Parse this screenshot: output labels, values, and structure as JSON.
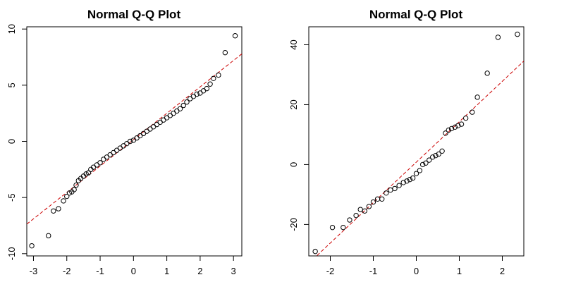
{
  "chart_data": [
    {
      "type": "scatter",
      "title": "Normal Q-Q Plot",
      "xlabel": "",
      "ylabel": "",
      "xlim": [
        -3.2,
        3.25
      ],
      "ylim": [
        -10.2,
        10.2
      ],
      "xticks": [
        -3,
        -2,
        -1,
        0,
        1,
        2,
        3
      ],
      "yticks": [
        -10,
        -5,
        0,
        5,
        10
      ],
      "grid": false,
      "point_color": "#000000",
      "reference_line": {
        "slope": 2.35,
        "intercept": 0.15,
        "color": "#cc0000",
        "style": "dashed"
      },
      "series": [
        {
          "x": [
            -3.05,
            -2.55,
            -2.4,
            -2.25,
            -2.1,
            -2.0,
            -1.92,
            -1.85,
            -1.78,
            -1.72,
            -1.65,
            -1.58,
            -1.5,
            -1.42,
            -1.35,
            -1.28,
            -1.2,
            -1.1,
            -1.0,
            -0.9,
            -0.8,
            -0.7,
            -0.6,
            -0.5,
            -0.4,
            -0.3,
            -0.2,
            -0.1,
            0.0,
            0.1,
            0.2,
            0.3,
            0.4,
            0.5,
            0.6,
            0.7,
            0.8,
            0.9,
            1.0,
            1.1,
            1.2,
            1.3,
            1.4,
            1.5,
            1.6,
            1.7,
            1.8,
            1.9,
            2.0,
            2.1,
            2.2,
            2.3,
            2.4,
            2.55,
            2.75,
            3.05
          ],
          "y": [
            -9.3,
            -8.4,
            -6.2,
            -6.0,
            -5.3,
            -4.9,
            -4.6,
            -4.5,
            -4.3,
            -3.9,
            -3.5,
            -3.3,
            -3.1,
            -2.9,
            -2.8,
            -2.5,
            -2.3,
            -2.1,
            -1.9,
            -1.6,
            -1.4,
            -1.2,
            -1.0,
            -0.8,
            -0.6,
            -0.4,
            -0.2,
            0.0,
            0.1,
            0.3,
            0.5,
            0.7,
            0.9,
            1.1,
            1.3,
            1.5,
            1.7,
            1.9,
            2.1,
            2.3,
            2.5,
            2.7,
            2.9,
            3.2,
            3.5,
            3.8,
            4.0,
            4.2,
            4.3,
            4.5,
            4.7,
            5.1,
            5.6,
            5.9,
            7.9,
            9.4
          ]
        }
      ]
    },
    {
      "type": "scatter",
      "title": "Normal Q-Q Plot",
      "xlabel": "",
      "ylabel": "",
      "xlim": [
        -2.5,
        2.5
      ],
      "ylim": [
        -30.5,
        46
      ],
      "xticks": [
        -2,
        -1,
        0,
        1,
        2
      ],
      "yticks": [
        -20,
        0,
        20,
        40
      ],
      "grid": false,
      "point_color": "#000000",
      "reference_line": {
        "slope": 13.5,
        "intercept": 0.8,
        "color": "#cc0000",
        "style": "dashed"
      },
      "series": [
        {
          "x": [
            -2.35,
            -1.95,
            -1.7,
            -1.55,
            -1.4,
            -1.3,
            -1.2,
            -1.1,
            -1.0,
            -0.9,
            -0.8,
            -0.7,
            -0.6,
            -0.5,
            -0.4,
            -0.3,
            -0.22,
            -0.15,
            -0.08,
            0.0,
            0.08,
            0.15,
            0.22,
            0.3,
            0.38,
            0.45,
            0.52,
            0.6,
            0.68,
            0.75,
            0.82,
            0.9,
            0.97,
            1.05,
            1.15,
            1.3,
            1.42,
            1.65,
            1.9,
            2.35
          ],
          "y": [
            -29.0,
            -21.0,
            -21.0,
            -18.5,
            -17.0,
            -15.0,
            -15.5,
            -14.0,
            -12.5,
            -11.5,
            -11.5,
            -9.5,
            -8.5,
            -8.0,
            -7.0,
            -6.0,
            -5.5,
            -5.0,
            -4.5,
            -3.0,
            -2.0,
            0.0,
            0.5,
            1.5,
            2.5,
            3.0,
            3.5,
            4.5,
            10.5,
            11.5,
            12.0,
            12.5,
            13.0,
            13.5,
            15.5,
            17.5,
            22.5,
            30.5,
            42.5,
            43.5
          ]
        }
      ]
    }
  ]
}
